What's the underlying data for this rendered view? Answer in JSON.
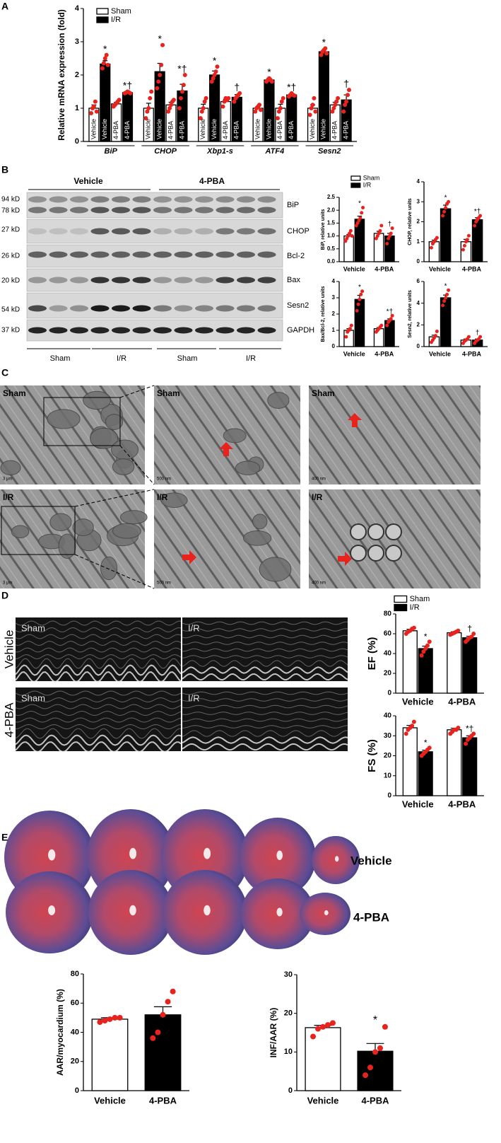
{
  "figure": {
    "panel_labels": [
      "A",
      "B",
      "C",
      "D",
      "E"
    ],
    "blot": {
      "groups": [
        "Vehicle",
        "4-PBA"
      ],
      "markers": [
        "94 kD",
        "78 kD",
        "27 kD",
        "26 kD",
        "20 kD",
        "54 kD",
        "37 kD"
      ],
      "proteins": [
        "BiP",
        "CHOP",
        "Bcl-2",
        "Bax",
        "Sesn2",
        "GAPDH"
      ],
      "conditions": [
        "Sham",
        "I/R",
        "Sham",
        "I/R"
      ]
    },
    "em": {
      "labels": [
        "Sham",
        "Sham",
        "Sham",
        "I/R",
        "I/R",
        "I/R"
      ],
      "scale_bars": [
        "3 μm",
        "500 nm",
        "400 nm",
        "3 μm",
        "500 nm",
        "400 nm"
      ]
    },
    "echo": {
      "rows": [
        "Vehicle",
        "4-PBA"
      ],
      "labels": [
        "Sham",
        "I/R",
        "Sham",
        "I/R"
      ]
    },
    "hearts": {
      "rows": [
        "Vehicle",
        "4-PBA"
      ]
    }
  },
  "chart_data": [
    {
      "type": "bar",
      "ylabel": "Relative mRNA expression (fold)",
      "categories": [
        "BiP",
        "CHOP",
        "Xbp1-s",
        "ATF4",
        "Sesn2"
      ],
      "ylim": [
        0,
        4
      ],
      "yticks": [
        0,
        1,
        2,
        3,
        4
      ],
      "legend": [
        {
          "name": "Sham",
          "color": "#ffffff"
        },
        {
          "name": "I/R",
          "color": "#000000"
        }
      ],
      "series": [
        {
          "bar_label": "Vehicle",
          "color": "#ffffff",
          "values": [
            1.0,
            1.0,
            1.0,
            1.0,
            1.0
          ],
          "errors": [
            0.1,
            0.15,
            0.12,
            0.05,
            0.1
          ],
          "points": [
            [
              0.85,
              1.0,
              1.05,
              1.2,
              0.9
            ],
            [
              0.7,
              0.9,
              1.0,
              1.3,
              1.5
            ],
            [
              0.7,
              0.9,
              1.0,
              1.2,
              1.3
            ],
            [
              0.9,
              1.0,
              1.05,
              1.1,
              0.95
            ],
            [
              0.8,
              1.0,
              1.1,
              1.3,
              0.9
            ]
          ],
          "annotations": [
            null,
            null,
            null,
            null,
            null
          ]
        },
        {
          "bar_label": "Vehicle",
          "color": "#000000",
          "values": [
            2.33,
            2.1,
            2.0,
            1.85,
            2.7
          ],
          "errors": [
            0.1,
            0.25,
            0.12,
            0.05,
            0.05
          ],
          "points": [
            [
              2.2,
              2.35,
              2.5,
              2.6,
              2.3
            ],
            [
              1.6,
              1.8,
              2.0,
              2.3,
              2.9
            ],
            [
              1.8,
              1.9,
              2.0,
              2.1,
              2.25
            ],
            [
              1.8,
              1.85,
              1.9,
              1.85,
              1.8
            ],
            [
              2.6,
              2.7,
              2.75,
              2.8,
              2.65
            ]
          ],
          "annotations": [
            "*",
            "*",
            "*",
            "*",
            "*"
          ]
        },
        {
          "bar_label": "4-PBA",
          "color": "#ffffff",
          "values": [
            1.13,
            1.1,
            1.2,
            1.0,
            1.1
          ],
          "errors": [
            0.05,
            0.08,
            0.07,
            0.12,
            0.08
          ],
          "points": [
            [
              1.05,
              1.1,
              1.15,
              1.2,
              1.25
            ],
            [
              0.9,
              1.0,
              1.1,
              1.2,
              1.25
            ],
            [
              1.05,
              1.2,
              1.3,
              1.25,
              1.3
            ],
            [
              0.7,
              0.9,
              1.0,
              1.2,
              1.3
            ],
            [
              0.9,
              1.0,
              1.1,
              1.2,
              1.3
            ]
          ],
          "annotations": [
            null,
            null,
            null,
            null,
            null
          ]
        },
        {
          "bar_label": "4-PBA",
          "color": "#000000",
          "values": [
            1.47,
            1.52,
            1.33,
            1.4,
            1.25
          ],
          "errors": [
            0.03,
            0.2,
            0.08,
            0.04,
            0.15
          ],
          "points": [
            [
              1.45,
              1.47,
              1.5,
              1.48,
              1.45
            ],
            [
              1.0,
              1.3,
              1.5,
              1.7,
              2.0
            ],
            [
              1.2,
              1.3,
              1.35,
              1.4,
              1.45
            ],
            [
              1.35,
              1.4,
              1.45,
              1.4,
              1.38
            ],
            [
              0.9,
              1.1,
              1.2,
              1.4,
              1.55
            ]
          ],
          "annotations": [
            "*†",
            "*†",
            "†",
            "*†",
            "†"
          ]
        }
      ]
    },
    {
      "type": "bar",
      "ylabel": "BiP, relative units",
      "categories": [
        "Vehicle",
        "4-PBA"
      ],
      "ylim": [
        0,
        2.5
      ],
      "yticks": [
        {
          "value": 0,
          "label": "0.0"
        },
        0.5,
        {
          "value": 1,
          "label": "1.0"
        },
        1.5,
        {
          "value": 2,
          "label": "2.0"
        },
        2.5
      ],
      "series": [
        {
          "name": "Sham",
          "color": "#ffffff",
          "values": [
            1.0,
            1.1
          ],
          "errors": [
            0.06,
            0.08
          ],
          "points": [
            [
              0.8,
              0.9,
              1.0,
              1.1,
              1.2,
              1.0
            ],
            [
              0.9,
              1.0,
              1.1,
              1.2,
              1.4
            ]
          ],
          "annotations": [
            null,
            null
          ]
        },
        {
          "name": "I/R",
          "color": "#000000",
          "values": [
            1.65,
            1.0
          ],
          "errors": [
            0.12,
            0.1
          ],
          "points": [
            [
              1.4,
              1.5,
              1.6,
              1.7,
              1.9,
              2.1
            ],
            [
              0.7,
              0.9,
              1.0,
              1.1,
              1.3
            ]
          ],
          "annotations": [
            "*",
            "†"
          ]
        }
      ]
    },
    {
      "type": "bar",
      "ylabel": "CHOP, relative units",
      "categories": [
        "Vehicle",
        "4-PBA"
      ],
      "ylim": [
        0,
        4
      ],
      "yticks": [
        0,
        1,
        2,
        3,
        4
      ],
      "series": [
        {
          "color": "#ffffff",
          "values": [
            1.0,
            1.0
          ],
          "errors": [
            0.08,
            0.12
          ],
          "points": [
            [
              0.7,
              0.9,
              1.0,
              1.1,
              1.2
            ],
            [
              0.6,
              0.8,
              1.0,
              1.1,
              1.3
            ]
          ],
          "annotations": [
            null,
            null
          ]
        },
        {
          "color": "#000000",
          "values": [
            2.65,
            2.1
          ],
          "errors": [
            0.18,
            0.1
          ],
          "points": [
            [
              2.3,
              2.5,
              2.7,
              2.9,
              3.0
            ],
            [
              1.8,
              2.0,
              2.1,
              2.2,
              2.3
            ]
          ],
          "annotations": [
            "*",
            "*†"
          ]
        }
      ]
    },
    {
      "type": "bar",
      "ylabel": "Bax/Bcl-2, relative units",
      "categories": [
        "Vehicle",
        "4-PBA"
      ],
      "ylim": [
        0,
        4
      ],
      "yticks": [
        0,
        1,
        2,
        3,
        4
      ],
      "series": [
        {
          "color": "#ffffff",
          "values": [
            1.0,
            1.1
          ],
          "errors": [
            0.1,
            0.07
          ],
          "points": [
            [
              0.6,
              0.9,
              1.0,
              1.1,
              1.3
            ],
            [
              0.9,
              1.0,
              1.1,
              1.2,
              1.3
            ]
          ],
          "annotations": [
            null,
            null
          ]
        },
        {
          "color": "#000000",
          "values": [
            2.9,
            1.6
          ],
          "errors": [
            0.25,
            0.1
          ],
          "points": [
            [
              2.2,
              2.6,
              2.9,
              3.2,
              3.4
            ],
            [
              1.3,
              1.5,
              1.6,
              1.7,
              1.9
            ]
          ],
          "annotations": [
            "*",
            "*†"
          ]
        }
      ]
    },
    {
      "type": "bar",
      "ylabel": "Sesn2, relative units",
      "categories": [
        "Vehicle",
        "4-PBA"
      ],
      "ylim": [
        0,
        6
      ],
      "yticks": [
        0,
        2,
        4,
        6
      ],
      "series": [
        {
          "color": "#ffffff",
          "values": [
            0.9,
            0.6
          ],
          "errors": [
            0.15,
            0.1
          ],
          "points": [
            [
              0.4,
              0.6,
              0.8,
              1.0,
              1.4
            ],
            [
              0.3,
              0.5,
              0.6,
              0.7,
              0.9
            ]
          ],
          "annotations": [
            null,
            null
          ]
        },
        {
          "color": "#000000",
          "values": [
            4.5,
            0.6
          ],
          "errors": [
            0.25,
            0.1
          ],
          "points": [
            [
              3.8,
              4.2,
              4.5,
              4.8,
              5.2
            ],
            [
              0.3,
              0.5,
              0.6,
              0.7,
              0.9
            ]
          ],
          "annotations": [
            "*",
            "†"
          ]
        }
      ]
    },
    {
      "type": "bar",
      "ylabel": "EF (%)",
      "categories": [
        "Vehicle",
        "4-PBA"
      ],
      "ylim": [
        0,
        80
      ],
      "yticks": [
        0,
        20,
        40,
        60,
        80
      ],
      "series": [
        {
          "name": "Sham",
          "color": "#ffffff",
          "values": [
            63,
            61
          ],
          "errors": [
            1.5,
            1
          ],
          "points": [
            [
              60,
              62,
              63,
              65,
              66
            ],
            [
              59,
              60,
              61,
              62,
              63
            ]
          ],
          "annotations": [
            null,
            null
          ]
        },
        {
          "name": "I/R",
          "color": "#000000",
          "values": [
            45,
            56
          ],
          "errors": [
            2.5,
            1.5
          ],
          "points": [
            [
              38,
              42,
              45,
              48,
              52
            ],
            [
              52,
              54,
              56,
              57,
              60
            ]
          ],
          "annotations": [
            "*",
            "†"
          ]
        }
      ]
    },
    {
      "type": "bar",
      "ylabel": "FS (%)",
      "categories": [
        "Vehicle",
        "4-PBA"
      ],
      "ylim": [
        0,
        40
      ],
      "yticks": [
        0,
        10,
        20,
        30,
        40
      ],
      "series": [
        {
          "color": "#ffffff",
          "values": [
            34,
            33
          ],
          "errors": [
            1.2,
            0.8
          ],
          "points": [
            [
              31,
              33,
              34,
              35,
              37
            ],
            [
              31,
              32,
              33,
              33,
              34
            ]
          ],
          "annotations": [
            null,
            null
          ]
        },
        {
          "color": "#000000",
          "values": [
            22,
            29
          ],
          "errors": [
            0.8,
            1
          ],
          "points": [
            [
              20,
              21,
              22,
              23,
              24
            ],
            [
              26,
              28,
              29,
              30,
              31
            ]
          ],
          "annotations": [
            "*",
            "*†"
          ]
        }
      ]
    },
    {
      "type": "bar",
      "ylabel": "AAR/myocardium (%)",
      "categories": [
        "Vehicle",
        "4-PBA"
      ],
      "ylim": [
        0,
        80
      ],
      "yticks": [
        0,
        20,
        40,
        60,
        80
      ],
      "series": [
        {
          "colors": [
            "#ffffff",
            "#000000"
          ],
          "values": [
            49,
            52
          ],
          "errors": [
            1,
            5.5
          ],
          "points": [
            [
              47,
              48,
              49,
              50,
              50
            ],
            [
              36,
              40,
              52,
              61,
              68
            ]
          ],
          "annotations": [
            null,
            null
          ]
        }
      ]
    },
    {
      "type": "bar",
      "ylabel": "INF/AAR (%)",
      "categories": [
        "Vehicle",
        "4-PBA"
      ],
      "ylim": [
        0,
        30
      ],
      "yticks": [
        0,
        10,
        20,
        30
      ],
      "series": [
        {
          "colors": [
            "#ffffff",
            "#000000"
          ],
          "values": [
            16.3,
            10.2
          ],
          "errors": [
            0.6,
            2
          ],
          "points": [
            [
              14,
              16,
              16.5,
              17,
              17.5
            ],
            [
              4,
              6,
              10,
              11,
              16.5
            ]
          ],
          "annotations": [
            null,
            "*"
          ]
        }
      ]
    }
  ]
}
